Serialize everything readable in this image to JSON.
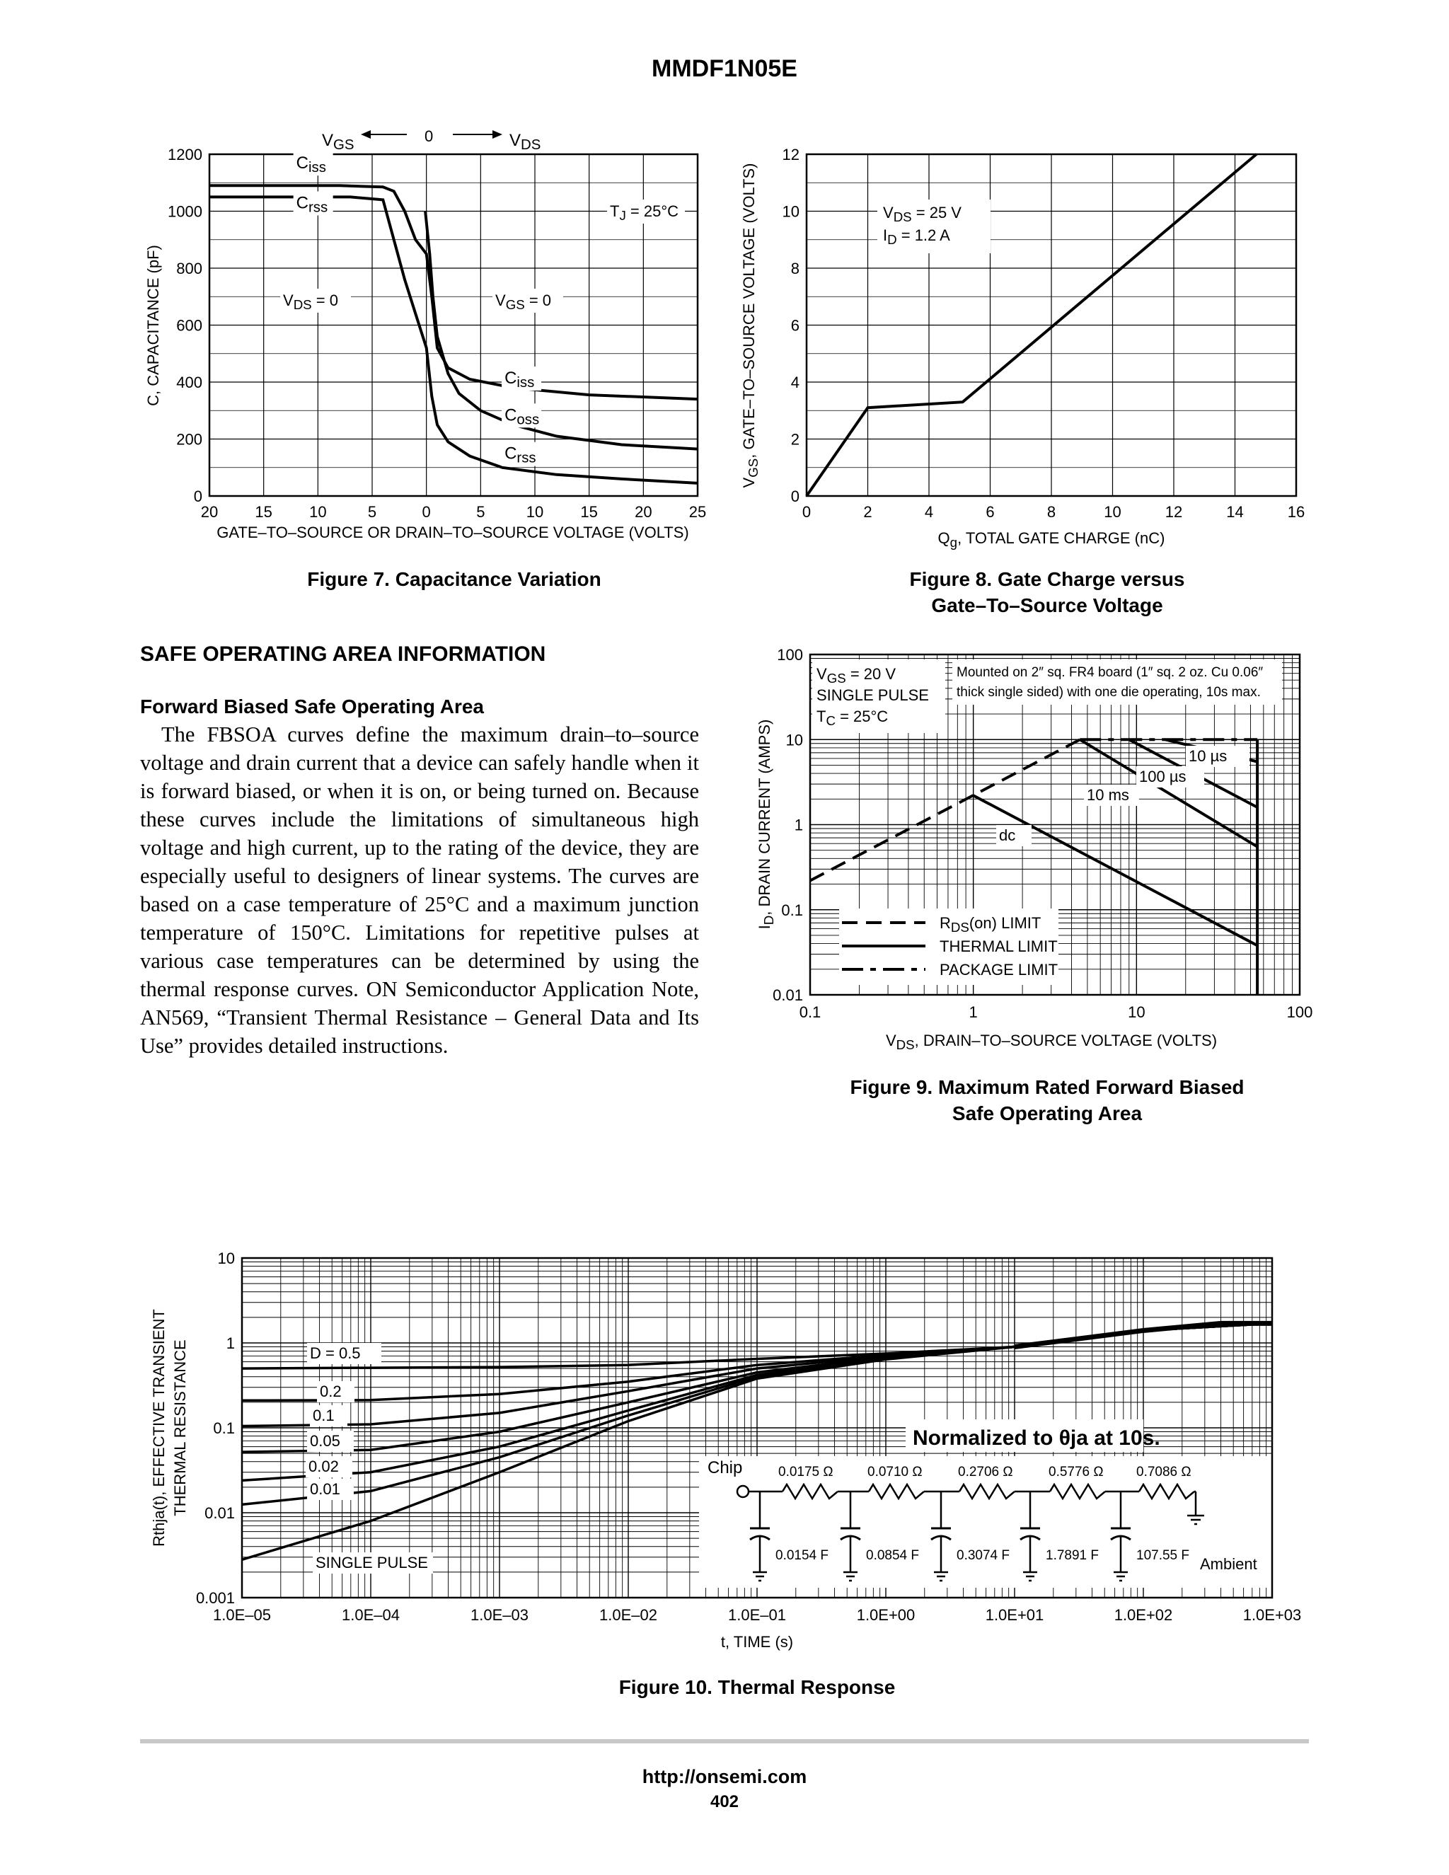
{
  "header": {
    "title": "MMDF1N05E"
  },
  "section": {
    "title": "SAFE OPERATING AREA INFORMATION",
    "subtitle": "Forward Biased Safe Operating Area",
    "paragraph": "The FBSOA curves define the maximum drain–to–source voltage and drain current that a device can safely handle when it is forward biased, or when it is on, or being turned on. Because these curves include the limitations of simultaneous high voltage and high current, up to the rating of the device, they are especially useful to designers of linear systems. The curves are based on a case temperature of 25°C and a maximum junction temperature of 150°C. Limitations for repetitive pulses at various case temperatures can be determined by using the thermal response curves. ON Semiconductor Application Note, AN569, “Transient Thermal Resistance – General Data and Its Use” provides detailed instructions."
  },
  "footer": {
    "url": "http://onsemi.com",
    "page": "402"
  },
  "chart_data": [
    {
      "id": "fig7",
      "type": "line",
      "title": "Figure 7. Capacitance Variation",
      "xlabel": "GATE–TO–SOURCE OR DRAIN–TO–SOURCE VOLTAGE (VOLTS)",
      "ylabel": "C, CAPACITANCE (pF)",
      "xlim": [
        -20,
        25
      ],
      "ylim": [
        0,
        1200
      ],
      "x_tick_labels": [
        "20",
        "15",
        "10",
        "5",
        "0",
        "5",
        "10",
        "15",
        "20",
        "25"
      ],
      "y_tick_labels": [
        "0",
        "200",
        "400",
        "600",
        "800",
        "1000",
        "1200"
      ],
      "top_labels": {
        "left": "VGS",
        "center": "0",
        "right": "VDS"
      },
      "annotations": [
        "TJ = 25°C",
        "VDS = 0",
        "VGS = 0"
      ],
      "grid": true,
      "series": [
        {
          "name": "Ciss",
          "points": [
            [
              -20,
              1090
            ],
            [
              -8,
              1090
            ],
            [
              -4,
              1085
            ],
            [
              -3,
              1070
            ],
            [
              -2,
              1000
            ],
            [
              -1,
              900
            ],
            [
              0,
              850
            ],
            [
              0.5,
              700
            ],
            [
              1,
              520
            ],
            [
              2,
              450
            ],
            [
              4,
              410
            ],
            [
              8,
              380
            ],
            [
              15,
              355
            ],
            [
              25,
              340
            ]
          ]
        },
        {
          "name": "Coss",
          "points": [
            [
              -0.1,
              1000
            ],
            [
              0.3,
              850
            ],
            [
              0.6,
              700
            ],
            [
              1,
              560
            ],
            [
              2,
              430
            ],
            [
              3,
              360
            ],
            [
              5,
              300
            ],
            [
              8,
              250
            ],
            [
              12,
              210
            ],
            [
              18,
              180
            ],
            [
              25,
              165
            ]
          ]
        },
        {
          "name": "Crss",
          "points": [
            [
              -20,
              1050
            ],
            [
              -7,
              1050
            ],
            [
              -4,
              1040
            ],
            [
              -3,
              900
            ],
            [
              -2,
              760
            ],
            [
              -1,
              640
            ],
            [
              0,
              520
            ],
            [
              0.5,
              350
            ],
            [
              1,
              250
            ],
            [
              2,
              190
            ],
            [
              4,
              140
            ],
            [
              7,
              100
            ],
            [
              12,
              75
            ],
            [
              18,
              60
            ],
            [
              25,
              45
            ]
          ]
        }
      ],
      "curve_labels": [
        "Ciss",
        "Crss",
        "Ciss",
        "Coss",
        "Crss"
      ]
    },
    {
      "id": "fig8",
      "type": "line",
      "title": "Figure 8. Gate Charge versus\nGate–To–Source Voltage",
      "xlabel": "Qg, TOTAL GATE CHARGE (nC)",
      "ylabel": "VGS, GATE–TO–SOURCE VOLTAGE (VOLTS)",
      "xlim": [
        0,
        16
      ],
      "ylim": [
        0,
        12
      ],
      "x_tick_labels": [
        "0",
        "2",
        "4",
        "6",
        "8",
        "10",
        "12",
        "14",
        "16"
      ],
      "y_tick_labels": [
        "0",
        "2",
        "4",
        "6",
        "8",
        "10",
        "12"
      ],
      "annotations": [
        "VDS = 25 V",
        "ID = 1.2 A"
      ],
      "grid": true,
      "series": [
        {
          "name": "",
          "points": [
            [
              0,
              0
            ],
            [
              2,
              3.1
            ],
            [
              5.1,
              3.3
            ],
            [
              14.7,
              12
            ]
          ]
        }
      ]
    },
    {
      "id": "fig9",
      "type": "line",
      "title": "Figure 9. Maximum Rated Forward Biased\nSafe Operating Area",
      "xlabel": "VDS, DRAIN–TO–SOURCE VOLTAGE (VOLTS)",
      "ylabel": "ID, DRAIN CURRENT (AMPS)",
      "xscale": "log",
      "yscale": "log",
      "xlim": [
        0.1,
        100
      ],
      "ylim": [
        0.01,
        100
      ],
      "x_tick_labels": [
        "0.1",
        "1",
        "10",
        "100"
      ],
      "y_tick_labels": [
        "0.01",
        "0.1",
        "1",
        "10",
        "100"
      ],
      "annotations": [
        "VGS = 20 V",
        "SINGLE PULSE",
        "TC = 25°C",
        "Mounted on 2″ sq. FR4 board (1″ sq. 2 oz. Cu 0.06″",
        "thick single sided) with one die operating, 10s max."
      ],
      "legend": [
        "RDS(on) LIMIT",
        "THERMAL LIMIT",
        "PACKAGE LIMIT"
      ],
      "curve_labels": [
        "10 µs",
        "100 µs",
        "10 ms",
        "dc"
      ],
      "grid": true,
      "series": [
        {
          "name": "RDS(on) LIMIT",
          "points": [
            [
              0.1,
              0.22
            ],
            [
              4.5,
              10
            ]
          ]
        },
        {
          "name": "PACKAGE LIMIT",
          "points": [
            [
              4.5,
              10
            ],
            [
              55,
              10
            ]
          ]
        },
        {
          "name": "10 µs",
          "points": [
            [
              15,
              10
            ],
            [
              55,
              5.5
            ]
          ]
        },
        {
          "name": "100 µs",
          "points": [
            [
              9,
              10
            ],
            [
              55,
              1.6
            ]
          ]
        },
        {
          "name": "10 ms",
          "points": [
            [
              4.5,
              10
            ],
            [
              55,
              0.55
            ]
          ]
        },
        {
          "name": "dc",
          "points": [
            [
              1,
              2.2
            ],
            [
              55,
              0.038
            ]
          ]
        },
        {
          "name": "THERMAL LIMIT",
          "points": [
            [
              55,
              10
            ],
            [
              55,
              0.01
            ]
          ]
        }
      ]
    },
    {
      "id": "fig10",
      "type": "line",
      "title": "Figure 10. Thermal Response",
      "xlabel": "t, TIME (s)",
      "ylabel": "Rthja(t), EFFECTIVE TRANSIENT\nTHERMAL RESISTANCE",
      "xscale": "log",
      "yscale": "log",
      "xlim": [
        1e-05,
        1000
      ],
      "ylim": [
        0.001,
        10
      ],
      "x_tick_labels": [
        "1.0E–05",
        "1.0E–04",
        "1.0E–03",
        "1.0E–02",
        "1.0E–01",
        "1.0E+00",
        "1.0E+01",
        "1.0E+02",
        "1.0E+03"
      ],
      "y_tick_labels": [
        "0.001",
        "0.01",
        "0.1",
        "1",
        "10"
      ],
      "annotations": [
        "Normalized to θja at 10s."
      ],
      "grid": true,
      "series": [
        {
          "name": "D = 0.5",
          "points": [
            [
              1e-05,
              0.5
            ],
            [
              0.001,
              0.52
            ],
            [
              0.01,
              0.55
            ],
            [
              0.1,
              0.65
            ],
            [
              1,
              0.75
            ],
            [
              10,
              0.9
            ],
            [
              100,
              1.4
            ],
            [
              400,
              1.7
            ],
            [
              1000,
              1.7
            ]
          ]
        },
        {
          "name": "0.2",
          "points": [
            [
              1e-05,
              0.21
            ],
            [
              0.0001,
              0.212
            ],
            [
              0.001,
              0.25
            ],
            [
              0.01,
              0.35
            ],
            [
              0.1,
              0.55
            ],
            [
              1,
              0.72
            ],
            [
              10,
              0.9
            ],
            [
              100,
              1.4
            ],
            [
              1000,
              1.7
            ]
          ]
        },
        {
          "name": "0.1",
          "points": [
            [
              1e-05,
              0.105
            ],
            [
              0.0001,
              0.11
            ],
            [
              0.001,
              0.15
            ],
            [
              0.01,
              0.27
            ],
            [
              0.1,
              0.5
            ],
            [
              1,
              0.7
            ],
            [
              10,
              0.9
            ],
            [
              100,
              1.4
            ],
            [
              1000,
              1.7
            ]
          ]
        },
        {
          "name": "0.05",
          "points": [
            [
              1e-05,
              0.052
            ],
            [
              0.0001,
              0.055
            ],
            [
              0.001,
              0.09
            ],
            [
              0.01,
              0.2
            ],
            [
              0.1,
              0.45
            ],
            [
              1,
              0.68
            ],
            [
              10,
              0.9
            ],
            [
              100,
              1.4
            ],
            [
              1000,
              1.7
            ]
          ]
        },
        {
          "name": "0.02",
          "points": [
            [
              1e-05,
              0.024
            ],
            [
              0.0001,
              0.03
            ],
            [
              0.001,
              0.06
            ],
            [
              0.01,
              0.16
            ],
            [
              0.1,
              0.42
            ],
            [
              1,
              0.66
            ],
            [
              10,
              0.9
            ],
            [
              100,
              1.4
            ],
            [
              1000,
              1.7
            ]
          ]
        },
        {
          "name": "0.01",
          "points": [
            [
              1e-05,
              0.0125
            ],
            [
              0.0001,
              0.018
            ],
            [
              0.001,
              0.045
            ],
            [
              0.01,
              0.14
            ],
            [
              0.1,
              0.4
            ],
            [
              1,
              0.65
            ],
            [
              10,
              0.9
            ],
            [
              100,
              1.4
            ],
            [
              1000,
              1.7
            ]
          ]
        },
        {
          "name": "SINGLE PULSE",
          "points": [
            [
              1e-05,
              0.0028
            ],
            [
              0.0001,
              0.008
            ],
            [
              0.001,
              0.03
            ],
            [
              0.01,
              0.12
            ],
            [
              0.1,
              0.38
            ],
            [
              1,
              0.64
            ],
            [
              10,
              0.9
            ],
            [
              100,
              1.4
            ],
            [
              1000,
              1.7
            ]
          ]
        }
      ],
      "rc_network": {
        "start_label": "Chip",
        "end_label": "Ambient",
        "resistors": [
          "0.0175 Ω",
          "0.0710 Ω",
          "0.2706 Ω",
          "0.5776 Ω",
          "0.7086 Ω"
        ],
        "capacitors": [
          "0.0154 F",
          "0.0854 F",
          "0.3074 F",
          "1.7891 F",
          "107.55 F"
        ]
      }
    }
  ]
}
